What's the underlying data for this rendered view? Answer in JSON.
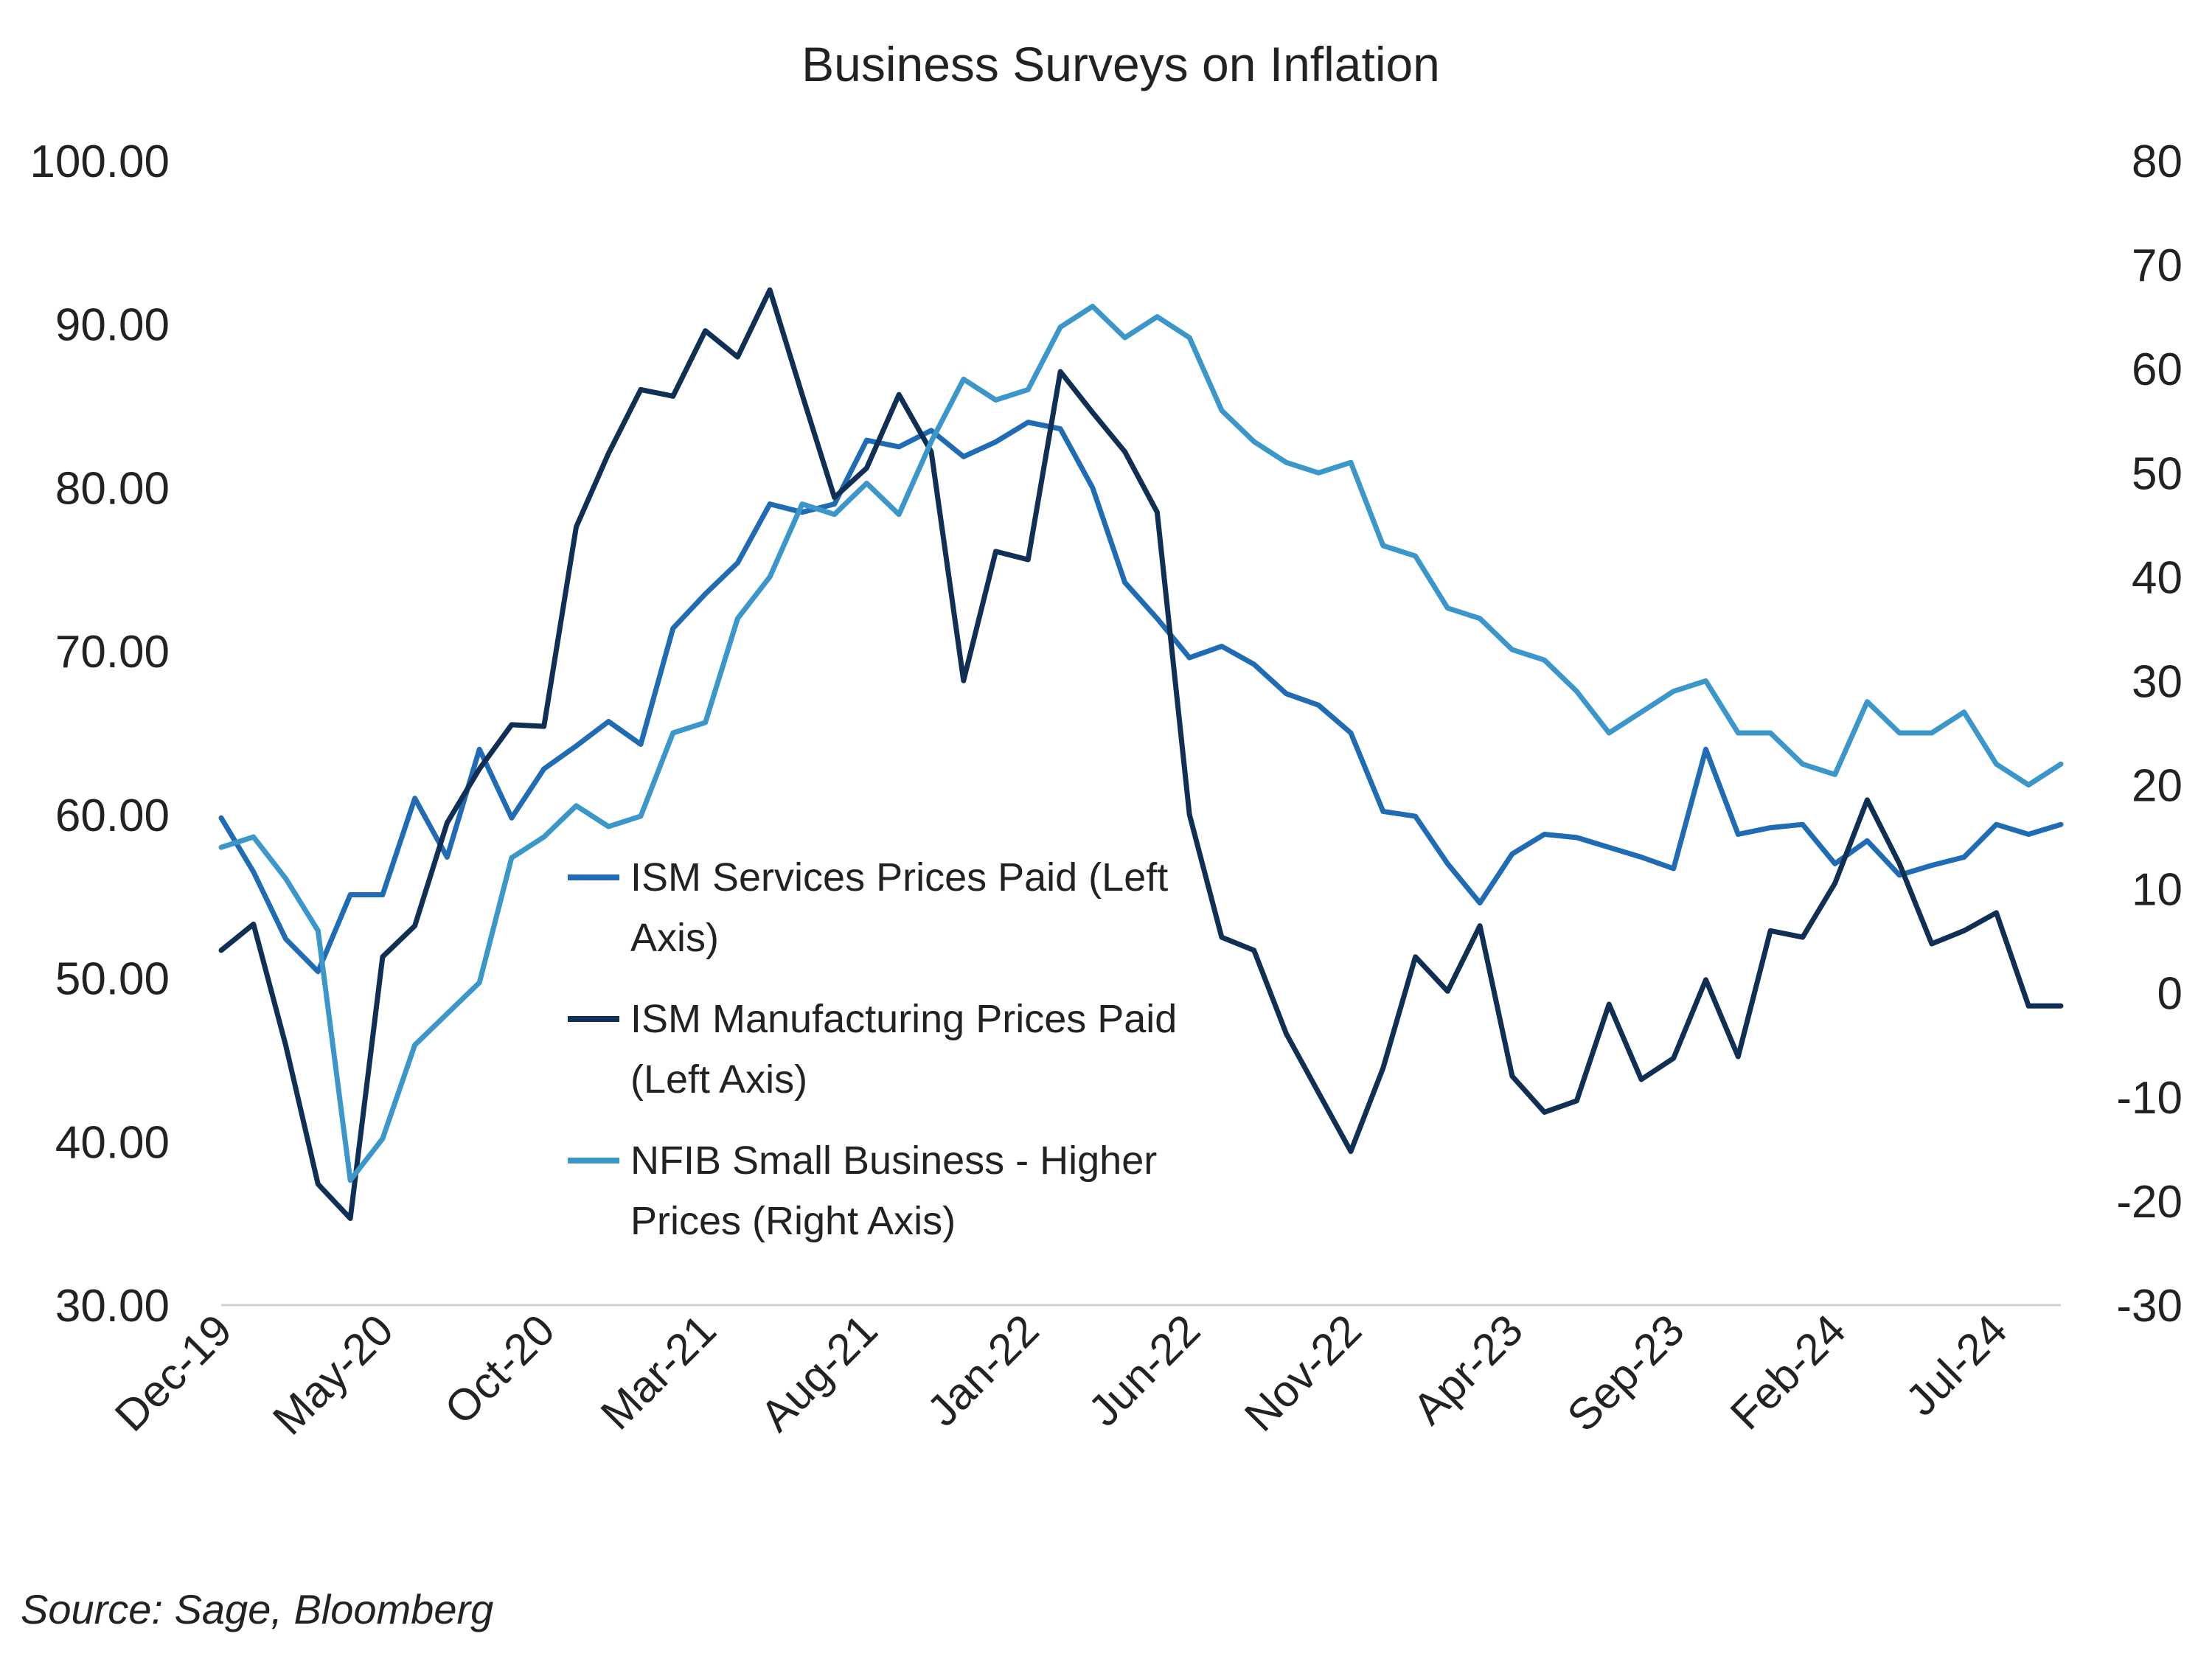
{
  "chart_data": {
    "type": "line",
    "title": "Business Surveys on Inflation",
    "source": "Source: Sage, Bloomberg",
    "left_axis": {
      "ylim": [
        30,
        100
      ],
      "ticks": [
        "100.00",
        "90.00",
        "80.00",
        "70.00",
        "60.00",
        "50.00",
        "40.00",
        "30.00"
      ]
    },
    "right_axis": {
      "ylim": [
        -30,
        80
      ],
      "ticks": [
        "80",
        "70",
        "60",
        "50",
        "40",
        "30",
        "20",
        "10",
        "0",
        "-10",
        "-20",
        "-30"
      ]
    },
    "x_tick_labels": [
      "Dec-19",
      "May-20",
      "Oct-20",
      "Mar-21",
      "Aug-21",
      "Jan-22",
      "Jun-22",
      "Nov-22",
      "Apr-23",
      "Sep-23",
      "Feb-24",
      "Jul-24"
    ],
    "x": [
      "Dec-19",
      "Jan-20",
      "Feb-20",
      "Mar-20",
      "Apr-20",
      "May-20",
      "Jun-20",
      "Jul-20",
      "Aug-20",
      "Sep-20",
      "Oct-20",
      "Nov-20",
      "Dec-20",
      "Jan-21",
      "Feb-21",
      "Mar-21",
      "Apr-21",
      "May-21",
      "Jun-21",
      "Jul-21",
      "Aug-21",
      "Sep-21",
      "Oct-21",
      "Nov-21",
      "Dec-21",
      "Jan-22",
      "Feb-22",
      "Mar-22",
      "Apr-22",
      "May-22",
      "Jun-22",
      "Jul-22",
      "Aug-22",
      "Sep-22",
      "Oct-22",
      "Nov-22",
      "Dec-22",
      "Jan-23",
      "Feb-23",
      "Mar-23",
      "Apr-23",
      "May-23",
      "Jun-23",
      "Jul-23",
      "Aug-23",
      "Sep-23",
      "Oct-23",
      "Nov-23",
      "Dec-23",
      "Jan-24",
      "Feb-24",
      "Mar-24",
      "Apr-24",
      "May-24",
      "Jun-24",
      "Jul-24",
      "Aug-24",
      "Sep-24"
    ],
    "grid": false,
    "legend_position": "center",
    "series": [
      {
        "name": "ISM Services Prices Paid (Left Axis)",
        "axis": "left",
        "color": "#1f6cb5",
        "values": [
          59.8,
          56.5,
          52.4,
          50.4,
          55.1,
          55.1,
          61.0,
          57.4,
          64.0,
          59.8,
          62.8,
          64.2,
          65.7,
          64.3,
          71.4,
          73.5,
          75.4,
          79.0,
          78.5,
          79.0,
          82.9,
          82.5,
          83.5,
          81.9,
          82.8,
          84.0,
          83.6,
          80.0,
          74.2,
          72.0,
          69.6,
          70.3,
          69.2,
          67.4,
          66.7,
          65.0,
          60.2,
          59.9,
          57.0,
          54.6,
          57.6,
          58.8,
          58.6,
          58.0,
          57.4,
          56.7,
          64.0,
          58.8,
          59.2,
          59.4,
          57.0,
          58.4,
          56.3,
          56.9,
          57.4,
          59.4,
          58.8,
          59.4
        ]
      },
      {
        "name": "ISM Manufacturing Prices Paid (Left Axis)",
        "axis": "left",
        "color": "#102f54",
        "values": [
          51.7,
          53.3,
          45.9,
          37.4,
          35.3,
          51.3,
          53.2,
          59.5,
          62.8,
          65.5,
          65.4,
          77.6,
          82.1,
          86.0,
          85.6,
          89.6,
          88.0,
          92.1,
          85.7,
          79.4,
          81.2,
          85.7,
          82.2,
          68.2,
          76.1,
          75.6,
          87.1,
          84.6,
          82.2,
          78.5,
          60.0,
          52.5,
          51.7,
          46.6,
          43.0,
          39.4,
          44.5,
          51.3,
          49.2,
          53.2,
          44.0,
          41.8,
          42.5,
          48.4,
          43.8,
          45.1,
          49.9,
          45.2,
          52.9,
          52.5,
          55.8,
          60.9,
          57.0,
          52.1,
          52.9,
          54.0,
          48.3,
          48.3
        ]
      },
      {
        "name": "NFIB Small Business - Higher Prices (Right Axis)",
        "axis": "right",
        "color": "#3b97c9",
        "values": [
          14,
          15,
          11,
          6,
          -18,
          -14,
          -5,
          -2,
          1,
          13,
          15,
          18,
          16,
          17,
          25,
          26,
          36,
          40,
          47,
          46,
          49,
          46,
          53,
          59,
          57,
          58,
          64,
          66,
          63,
          65,
          63,
          56,
          53,
          51,
          50,
          51,
          43,
          42,
          37,
          36,
          33,
          32,
          29,
          25,
          27,
          29,
          30,
          25,
          25,
          22,
          21,
          28,
          25,
          25,
          27,
          22,
          20,
          22
        ]
      }
    ]
  }
}
